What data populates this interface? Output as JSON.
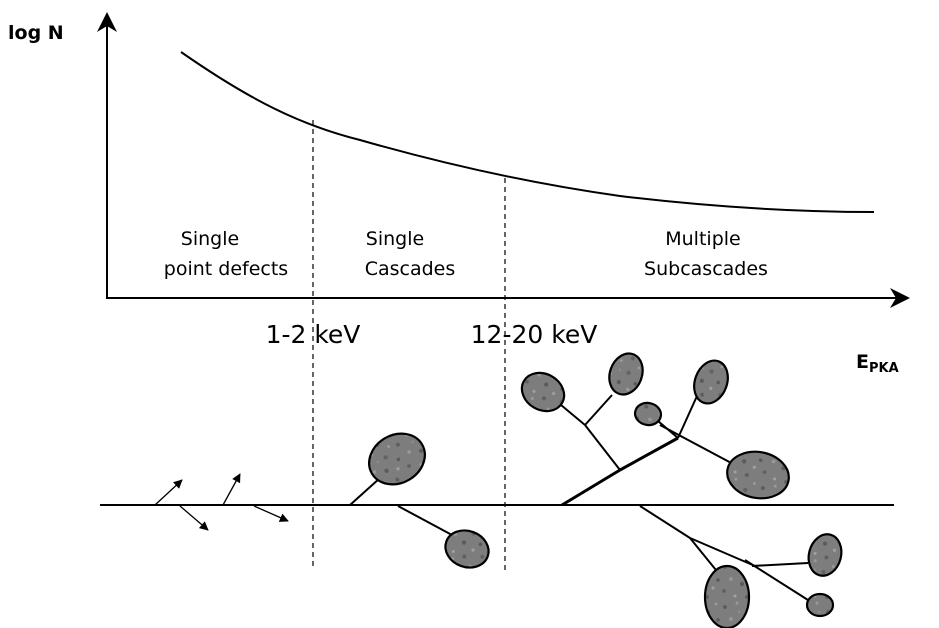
{
  "axes": {
    "y_label": "log N",
    "x_label_main": "E",
    "x_label_sub": "PKA"
  },
  "regions": [
    {
      "line1": "Single",
      "line2": "point defects"
    },
    {
      "line1": "Single",
      "line2": "Cascades"
    },
    {
      "line1": "Multiple",
      "line2": "Subcascades"
    }
  ],
  "thresholds": [
    "1-2 keV",
    "12-20 keV"
  ],
  "colors": {
    "line": "#000000",
    "blob_fill": "#7d7d7d"
  }
}
